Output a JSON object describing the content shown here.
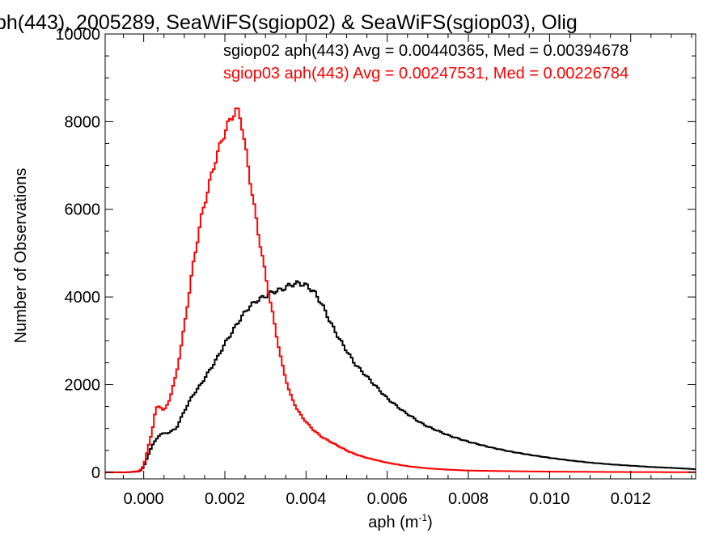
{
  "chart_data": {
    "type": "line",
    "title": "ph(443), 2005289, SeaWiFS(sgiop02) & SeaWiFS(sgiop03), Olig",
    "xlabel": "aph (m",
    "xlabel_exp": "-1",
    "xlabel_tail": ")",
    "ylabel": "Number of Observations",
    "xlim": [
      -0.00095,
      0.0136
    ],
    "ylim": [
      -150,
      10000
    ],
    "xticks": [
      {
        "v": 0.0,
        "label": "0.000"
      },
      {
        "v": 0.002,
        "label": "0.002"
      },
      {
        "v": 0.004,
        "label": "0.004"
      },
      {
        "v": 0.006,
        "label": "0.006"
      },
      {
        "v": 0.008,
        "label": "0.008"
      },
      {
        "v": 0.01,
        "label": "0.010"
      },
      {
        "v": 0.012,
        "label": "0.012"
      }
    ],
    "yticks": [
      {
        "v": 0,
        "label": "0"
      },
      {
        "v": 2000,
        "label": "2000"
      },
      {
        "v": 4000,
        "label": "4000"
      },
      {
        "v": 6000,
        "label": "6000"
      },
      {
        "v": 8000,
        "label": "8000"
      },
      {
        "v": 10000,
        "label": "10000"
      }
    ],
    "grid": false,
    "annotations": [
      {
        "text": "sgiop02 aph(443) Avg = 0.00440365, Med = 0.00394678",
        "color": "#000000"
      },
      {
        "text": "sgiop03 aph(443) Avg = 0.00247531, Med = 0.00226784",
        "color": "#ff0000"
      }
    ],
    "series": [
      {
        "color": "#000000",
        "x": [
          -0.00095,
          -0.0004,
          -0.0001,
          0.0,
          0.0002,
          0.0004,
          0.0006,
          0.0008,
          0.001,
          0.0012,
          0.0014,
          0.0016,
          0.0018,
          0.002,
          0.0022,
          0.0024,
          0.0026,
          0.0028,
          0.003,
          0.0032,
          0.0034,
          0.0036,
          0.0038,
          0.004,
          0.0042,
          0.0044,
          0.0046,
          0.0048,
          0.005,
          0.0052,
          0.0054,
          0.0056,
          0.0058,
          0.006,
          0.0062,
          0.0064,
          0.0066,
          0.0068,
          0.007,
          0.0075,
          0.008,
          0.0085,
          0.009,
          0.0095,
          0.01,
          0.0105,
          0.011,
          0.0115,
          0.012,
          0.0125,
          0.013,
          0.0136
        ],
        "y": [
          0,
          0,
          20,
          120,
          600,
          870,
          900,
          1000,
          1400,
          1750,
          2000,
          2300,
          2600,
          2950,
          3250,
          3550,
          3800,
          3950,
          4050,
          4150,
          4200,
          4300,
          4350,
          4300,
          4150,
          3850,
          3450,
          3100,
          2800,
          2500,
          2300,
          2100,
          1900,
          1700,
          1550,
          1400,
          1280,
          1150,
          1050,
          850,
          700,
          580,
          480,
          400,
          330,
          270,
          220,
          180,
          150,
          120,
          100,
          70
        ]
      },
      {
        "color": "#ff0000",
        "x": [
          -0.00095,
          -0.0004,
          -0.0001,
          0.0,
          0.0002,
          0.0003,
          0.0004,
          0.0005,
          0.0006,
          0.0008,
          0.001,
          0.0012,
          0.0014,
          0.0016,
          0.0018,
          0.002,
          0.0022,
          0.0023,
          0.0024,
          0.0026,
          0.0028,
          0.003,
          0.0032,
          0.0034,
          0.0036,
          0.0038,
          0.004,
          0.0042,
          0.0044,
          0.0046,
          0.0048,
          0.005,
          0.0052,
          0.0055,
          0.006,
          0.0065,
          0.007,
          0.0075,
          0.008,
          0.009,
          0.01,
          0.011,
          0.012,
          0.013,
          0.0136
        ],
        "y": [
          0,
          0,
          30,
          150,
          900,
          1450,
          1500,
          1400,
          1550,
          2200,
          3300,
          4600,
          5700,
          6500,
          7200,
          7750,
          8150,
          8250,
          8050,
          6800,
          5600,
          4500,
          3500,
          2500,
          1800,
          1400,
          1150,
          950,
          800,
          700,
          600,
          500,
          420,
          330,
          220,
          140,
          90,
          60,
          40,
          25,
          15,
          10,
          5,
          3,
          2
        ]
      }
    ]
  }
}
